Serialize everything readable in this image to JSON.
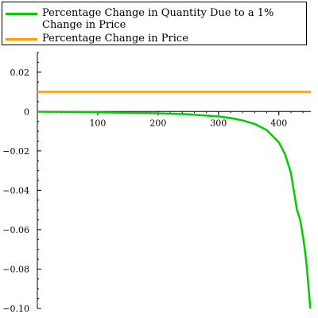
{
  "chart_data": {
    "type": "line",
    "title": "",
    "xlabel": "",
    "ylabel": "",
    "xlim": [
      0,
      453
    ],
    "ylim": [
      -0.1,
      0.03
    ],
    "x_ticks": [
      100,
      200,
      300,
      400
    ],
    "y_ticks": [
      0.02,
      0,
      -0.02,
      -0.04,
      -0.06,
      -0.08,
      -0.1
    ],
    "x_tick_labels": [
      "100",
      "200",
      "300",
      "400"
    ],
    "y_tick_labels": [
      "0.02",
      "0",
      "−0.02",
      "−0.04",
      "−0.06",
      "−0.08",
      "−0.10"
    ],
    "grid": false,
    "legend_position": "top",
    "series": [
      {
        "name": "Percentage Change in Quantity Due to a 1% Change in Price",
        "color": "#00cc00",
        "x": [
          0,
          50,
          100,
          150,
          200,
          250,
          300,
          320,
          340,
          360,
          380,
          400,
          410,
          420,
          430,
          435,
          440,
          443,
          446,
          448,
          450,
          452
        ],
        "y": [
          -0.0001,
          -0.0002,
          -0.0004,
          -0.0006,
          -0.0009,
          -0.0014,
          -0.0025,
          -0.0033,
          -0.0045,
          -0.0063,
          -0.0094,
          -0.0156,
          -0.0215,
          -0.0312,
          -0.05,
          -0.0545,
          -0.0635,
          -0.07,
          -0.078,
          -0.085,
          -0.092,
          -0.1
        ]
      },
      {
        "name": "Percentage Change in Price",
        "color": "#ff9900",
        "x": [
          0,
          453
        ],
        "y": [
          0.01,
          0.01
        ]
      }
    ]
  }
}
